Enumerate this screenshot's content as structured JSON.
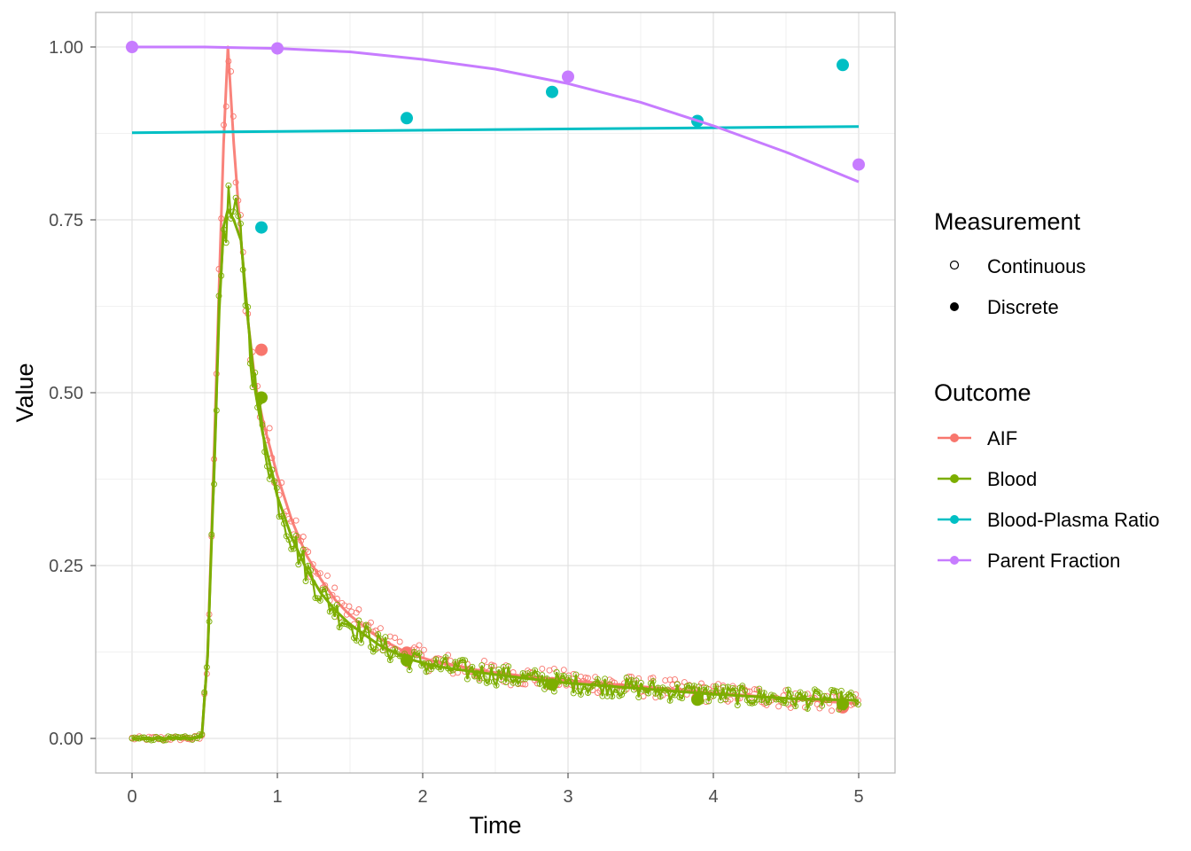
{
  "chart_data": {
    "type": "line",
    "xlabel": "Time",
    "ylabel": "Value",
    "xlim": [
      -0.25,
      5.25
    ],
    "ylim": [
      -0.05,
      1.05
    ],
    "x_ticks": [
      0,
      1,
      2,
      3,
      4,
      5
    ],
    "x_tick_labels": [
      "0",
      "1",
      "2",
      "3",
      "4",
      "5"
    ],
    "y_ticks": [
      0,
      0.25,
      0.5,
      0.75,
      1.0
    ],
    "y_tick_labels": [
      "0.00",
      "0.25",
      "0.50",
      "0.75",
      "1.00"
    ],
    "grid": true,
    "legend_placement": "right",
    "legends": {
      "measurement": {
        "title": "Measurement",
        "items": [
          {
            "label": "Continuous",
            "shape": "hollow-circle"
          },
          {
            "label": "Discrete",
            "shape": "filled-circle"
          }
        ]
      },
      "outcome": {
        "title": "Outcome",
        "items": [
          {
            "label": "AIF",
            "color": "#F8766D"
          },
          {
            "label": "Blood",
            "color": "#7CAE00"
          },
          {
            "label": "Blood-Plasma Ratio",
            "color": "#00BFC4"
          },
          {
            "label": "Parent Fraction",
            "color": "#C77CFF"
          }
        ]
      }
    },
    "series": [
      {
        "name": "AIF",
        "color": "#F8766D",
        "fit_line": {
          "x": [
            0,
            0.1,
            0.2,
            0.3,
            0.4,
            0.48,
            0.52,
            0.56,
            0.6,
            0.63,
            0.66,
            0.7,
            0.75,
            0.8,
            0.85,
            0.9,
            1.0,
            1.1,
            1.2,
            1.3,
            1.4,
            1.5,
            1.7,
            1.9,
            2.1,
            2.4,
            2.7,
            3.0,
            3.5,
            4.0,
            4.5,
            5.0
          ],
          "y": [
            0,
            0,
            0,
            0,
            0,
            0.002,
            0.12,
            0.38,
            0.66,
            0.86,
            1.0,
            0.86,
            0.72,
            0.6,
            0.51,
            0.46,
            0.38,
            0.315,
            0.265,
            0.23,
            0.2,
            0.178,
            0.145,
            0.123,
            0.11,
            0.098,
            0.09,
            0.084,
            0.075,
            0.066,
            0.058,
            0.05
          ]
        },
        "discrete_points": [
          {
            "x": 0.89,
            "y": 0.562
          },
          {
            "x": 1.89,
            "y": 0.124
          },
          {
            "x": 2.89,
            "y": 0.08
          },
          {
            "x": 3.89,
            "y": 0.058
          },
          {
            "x": 4.89,
            "y": 0.045
          }
        ]
      },
      {
        "name": "Blood",
        "color": "#7CAE00",
        "fit_line": {
          "x": [
            0,
            0.1,
            0.2,
            0.3,
            0.4,
            0.48,
            0.52,
            0.56,
            0.6,
            0.63,
            0.66,
            0.7,
            0.75,
            0.8,
            0.85,
            0.9,
            1.0,
            1.1,
            1.2,
            1.3,
            1.4,
            1.5,
            1.7,
            1.9,
            2.1,
            2.4,
            2.7,
            3.0,
            3.5,
            4.0,
            4.5,
            5.0
          ],
          "y": [
            0,
            0,
            0,
            0,
            0,
            0.002,
            0.12,
            0.36,
            0.62,
            0.74,
            0.765,
            0.75,
            0.72,
            0.6,
            0.5,
            0.44,
            0.35,
            0.29,
            0.245,
            0.21,
            0.185,
            0.165,
            0.135,
            0.115,
            0.104,
            0.095,
            0.087,
            0.08,
            0.072,
            0.064,
            0.058,
            0.055
          ]
        },
        "discrete_points": [
          {
            "x": 0.89,
            "y": 0.493
          },
          {
            "x": 1.89,
            "y": 0.113
          },
          {
            "x": 2.89,
            "y": 0.078
          },
          {
            "x": 3.89,
            "y": 0.056
          },
          {
            "x": 4.89,
            "y": 0.05
          }
        ]
      },
      {
        "name": "Blood-Plasma Ratio",
        "color": "#00BFC4",
        "fit_line": {
          "x": [
            0,
            5
          ],
          "y": [
            0.876,
            0.885
          ]
        },
        "discrete_points": [
          {
            "x": 0.89,
            "y": 0.739
          },
          {
            "x": 1.89,
            "y": 0.897
          },
          {
            "x": 2.89,
            "y": 0.935
          },
          {
            "x": 3.89,
            "y": 0.893
          },
          {
            "x": 4.89,
            "y": 0.974
          }
        ]
      },
      {
        "name": "Parent Fraction",
        "color": "#C77CFF",
        "fit_line": {
          "x": [
            0,
            0.5,
            1.0,
            1.5,
            2.0,
            2.5,
            3.0,
            3.5,
            4.0,
            4.5,
            5.0
          ],
          "y": [
            1.0,
            1.0,
            0.998,
            0.993,
            0.982,
            0.968,
            0.947,
            0.92,
            0.886,
            0.848,
            0.805
          ]
        },
        "discrete_points": [
          {
            "x": 0.0,
            "y": 1.0
          },
          {
            "x": 1.0,
            "y": 0.998
          },
          {
            "x": 3.0,
            "y": 0.957
          },
          {
            "x": 5.0,
            "y": 0.83
          }
        ]
      }
    ]
  }
}
